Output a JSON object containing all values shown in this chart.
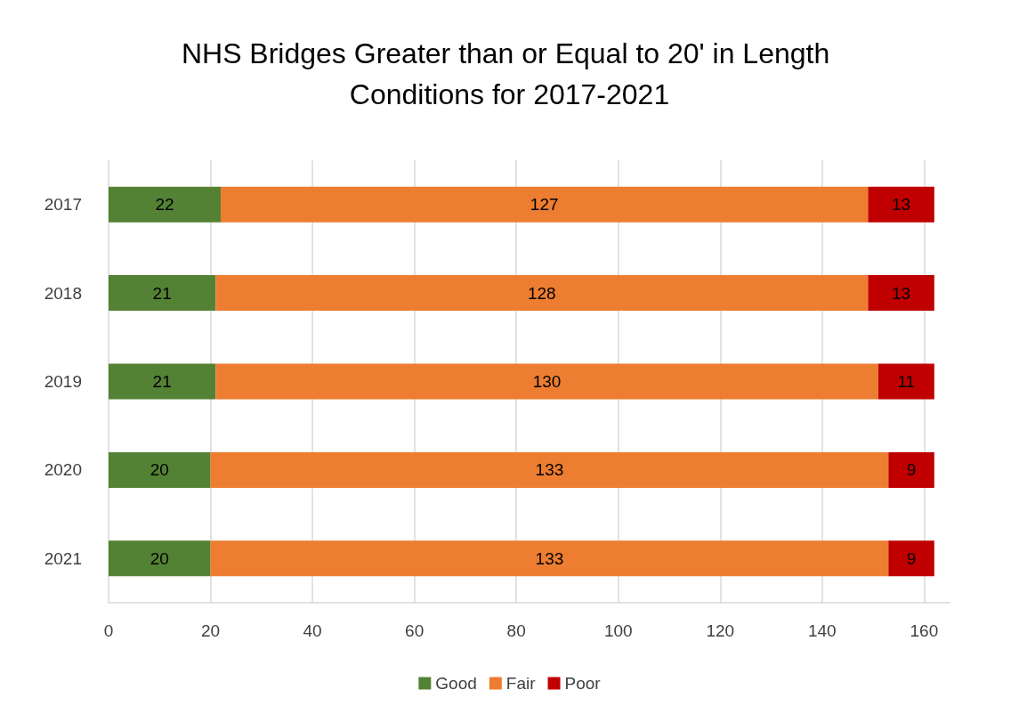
{
  "chart_data": {
    "type": "bar",
    "orientation": "horizontal",
    "stacked": true,
    "title": "NHS Bridges Greater than or Equal to 20' in Length Conditions for 2017-2021",
    "categories": [
      "2017",
      "2018",
      "2019",
      "2020",
      "2021"
    ],
    "series": [
      {
        "name": "Good",
        "color": "#548235",
        "values": [
          22,
          21,
          21,
          20,
          20
        ]
      },
      {
        "name": "Fair",
        "color": "#ed7d31",
        "values": [
          127,
          128,
          130,
          133,
          133
        ]
      },
      {
        "name": "Poor",
        "color": "#c00000",
        "values": [
          13,
          13,
          11,
          9,
          9
        ]
      }
    ],
    "xlim": [
      0,
      165
    ],
    "xticks": [
      0,
      20,
      40,
      60,
      80,
      100,
      120,
      140,
      160
    ],
    "grid": "x",
    "legend": "bottom",
    "data_labels": true
  }
}
